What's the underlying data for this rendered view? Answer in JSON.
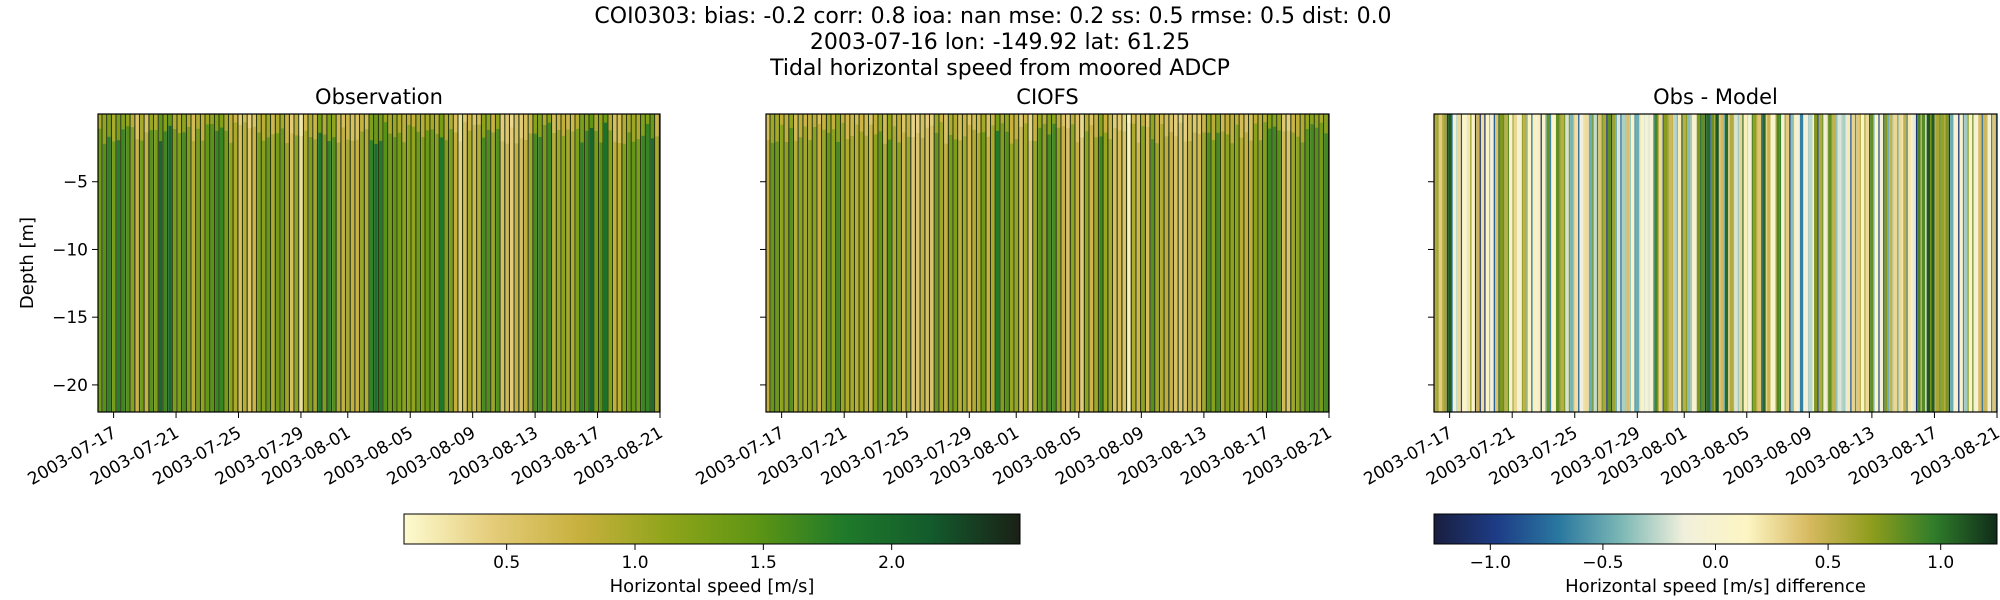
{
  "figure": {
    "title_lines": [
      "COI0303: bias: -0.2  corr: 0.8  ioa: nan  mse: 0.2  ss: 0.5  rmse: 0.5  dist: 0.0",
      "2003-07-16 lon: -149.92 lat: 61.25",
      "Tidal horizontal speed from moored ADCP"
    ]
  },
  "chart_data": [
    {
      "type": "heatmap",
      "title": "Observation",
      "ylabel": "Depth [m]",
      "xlabel": "",
      "x_ticks": [
        "2003-07-17",
        "2003-07-21",
        "2003-07-25",
        "2003-07-29",
        "2003-08-01",
        "2003-08-05",
        "2003-08-09",
        "2003-08-13",
        "2003-08-17",
        "2003-08-21"
      ],
      "xlim": [
        "2003-07-16",
        "2003-08-21"
      ],
      "y_ticks": [
        -5,
        -10,
        -15,
        -20
      ],
      "ylim": [
        -22,
        0
      ],
      "colormap": "speed",
      "value_range": [
        0.1,
        2.5
      ],
      "mean_value": 1.2,
      "strips": 120
    },
    {
      "type": "heatmap",
      "title": "CIOFS",
      "ylabel": "",
      "xlabel": "",
      "x_ticks": [
        "2003-07-17",
        "2003-07-21",
        "2003-07-25",
        "2003-07-29",
        "2003-08-01",
        "2003-08-05",
        "2003-08-09",
        "2003-08-13",
        "2003-08-17",
        "2003-08-21"
      ],
      "xlim": [
        "2003-07-16",
        "2003-08-21"
      ],
      "y_ticks": [
        -5,
        -10,
        -15,
        -20
      ],
      "ylim": [
        -22,
        0
      ],
      "colormap": "speed",
      "value_range": [
        0.1,
        2.5
      ],
      "mean_value": 1.0,
      "strips": 120
    },
    {
      "type": "heatmap",
      "title": "Obs - Model",
      "ylabel": "",
      "xlabel": "",
      "x_ticks": [
        "2003-07-17",
        "2003-07-21",
        "2003-07-25",
        "2003-07-29",
        "2003-08-01",
        "2003-08-05",
        "2003-08-09",
        "2003-08-13",
        "2003-08-17",
        "2003-08-21"
      ],
      "xlim": [
        "2003-07-16",
        "2003-08-21"
      ],
      "y_ticks": [
        -5,
        -10,
        -15,
        -20
      ],
      "ylim": [
        -22,
        0
      ],
      "colormap": "diff",
      "value_range": [
        -1.25,
        1.25
      ],
      "mean_value": 0.2,
      "strips": 120
    }
  ],
  "colorbars": [
    {
      "label": "Horizontal speed [m/s]",
      "colormap": "speed",
      "range": [
        0.1,
        2.5
      ],
      "ticks": [
        0.5,
        1.0,
        1.5,
        2.0
      ],
      "tick_labels": [
        "0.5",
        "1.0",
        "1.5",
        "2.0"
      ]
    },
    {
      "label": "Horizontal speed [m/s] difference",
      "colormap": "diff",
      "range": [
        -1.25,
        1.25
      ],
      "ticks": [
        -1.0,
        -0.5,
        0.0,
        0.5,
        1.0
      ],
      "tick_labels": [
        "−1.0",
        "−0.5",
        "0.0",
        "0.5",
        "1.0"
      ]
    }
  ],
  "colormaps": {
    "speed": [
      "#fdfbd0",
      "#e4cc7a",
      "#c8b03e",
      "#8ea41a",
      "#5e9514",
      "#1f7a2a",
      "#135a2c",
      "#1a2016"
    ],
    "diff": [
      "#191e3f",
      "#1d3c86",
      "#2a78a0",
      "#7cb8b5",
      "#f1f0dc",
      "#fdf5c3",
      "#d7b960",
      "#8e9d1d",
      "#2f7d2a",
      "#102b1a"
    ]
  }
}
